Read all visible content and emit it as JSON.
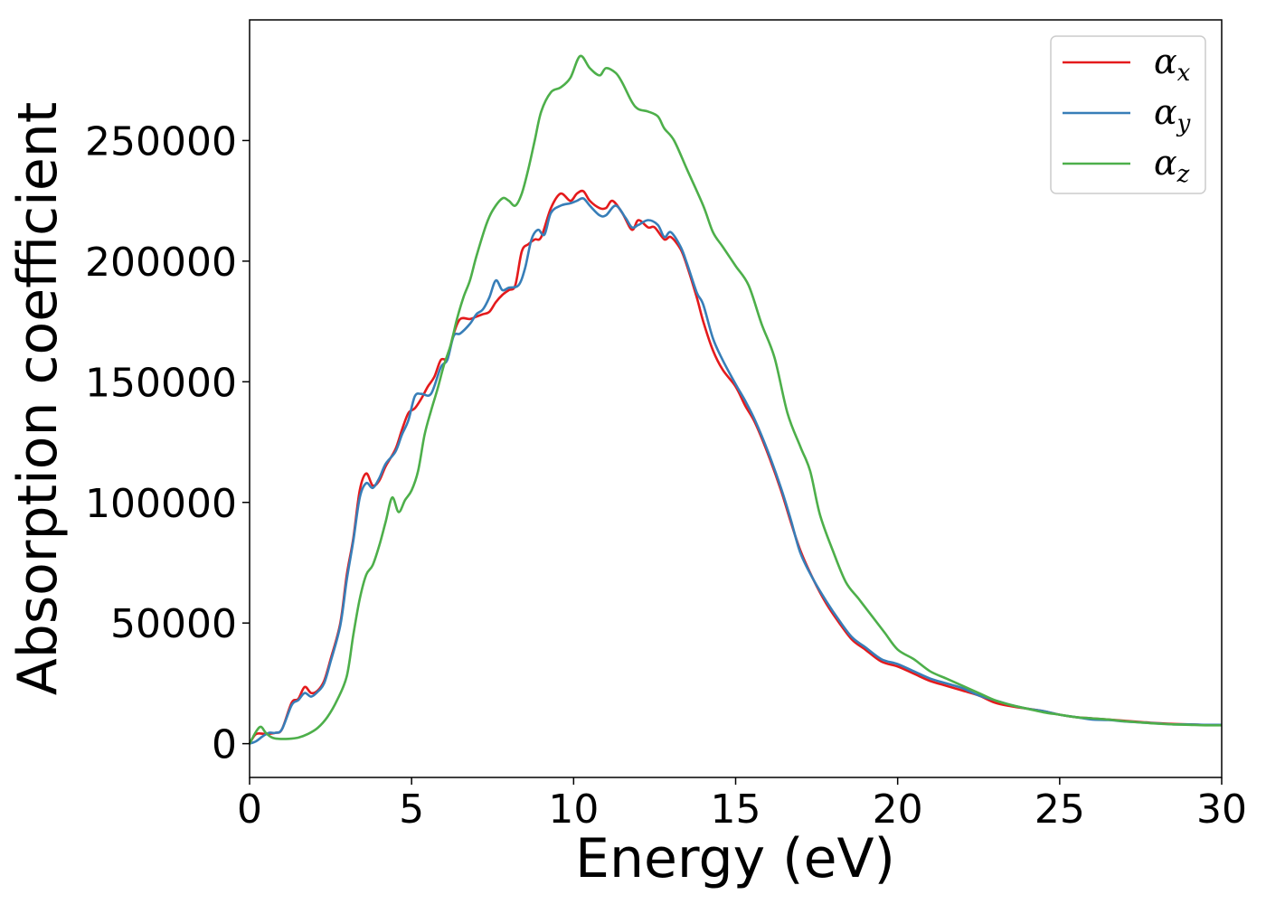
{
  "chart_data": {
    "type": "line",
    "title": "",
    "xlabel": "Energy (eV)",
    "ylabel": "Absorption coefficient",
    "xlim": [
      0,
      30
    ],
    "ylim": [
      -14000,
      300000
    ],
    "xticks": [
      0,
      5,
      10,
      15,
      20,
      25,
      30
    ],
    "yticks": [
      0,
      50000,
      100000,
      150000,
      200000,
      250000
    ],
    "x_tick_labels": [
      "0",
      "5",
      "10",
      "15",
      "20",
      "25",
      "30"
    ],
    "y_tick_labels": [
      "0",
      "50000",
      "100000",
      "150000",
      "200000",
      "250000"
    ],
    "grid": false,
    "legend_position": "top-right",
    "series": [
      {
        "name": "αx",
        "legend_symbol": "α",
        "legend_subscript": "x",
        "color": "#e41a1c",
        "points": [
          [
            0,
            0
          ],
          [
            0.2,
            4000
          ],
          [
            0.5,
            4000
          ],
          [
            0.8,
            4500
          ],
          [
            1.0,
            6000
          ],
          [
            1.3,
            17000
          ],
          [
            1.5,
            18500
          ],
          [
            1.7,
            23500
          ],
          [
            1.9,
            21000
          ],
          [
            2.1,
            22000
          ],
          [
            2.3,
            26000
          ],
          [
            2.5,
            35000
          ],
          [
            2.8,
            50000
          ],
          [
            3.0,
            70000
          ],
          [
            3.2,
            85000
          ],
          [
            3.4,
            105000
          ],
          [
            3.6,
            112000
          ],
          [
            3.8,
            107000
          ],
          [
            4.0,
            109000
          ],
          [
            4.2,
            115000
          ],
          [
            4.5,
            122000
          ],
          [
            4.7,
            130000
          ],
          [
            4.9,
            137000
          ],
          [
            5.1,
            139000
          ],
          [
            5.3,
            143000
          ],
          [
            5.5,
            148000
          ],
          [
            5.7,
            152000
          ],
          [
            5.9,
            159000
          ],
          [
            6.1,
            160000
          ],
          [
            6.3,
            170000
          ],
          [
            6.5,
            176000
          ],
          [
            6.8,
            176000
          ],
          [
            7.0,
            177000
          ],
          [
            7.2,
            178000
          ],
          [
            7.4,
            179000
          ],
          [
            7.6,
            183000
          ],
          [
            7.8,
            186000
          ],
          [
            8.0,
            188000
          ],
          [
            8.2,
            190000
          ],
          [
            8.4,
            204000
          ],
          [
            8.6,
            207000
          ],
          [
            8.8,
            209000
          ],
          [
            9.0,
            210000
          ],
          [
            9.3,
            222000
          ],
          [
            9.6,
            228000
          ],
          [
            9.9,
            225000
          ],
          [
            10.1,
            228000
          ],
          [
            10.3,
            229000
          ],
          [
            10.5,
            225000
          ],
          [
            10.8,
            222000
          ],
          [
            11.0,
            222000
          ],
          [
            11.2,
            225000
          ],
          [
            11.5,
            220000
          ],
          [
            11.8,
            213000
          ],
          [
            12.0,
            217000
          ],
          [
            12.3,
            214000
          ],
          [
            12.5,
            214000
          ],
          [
            12.8,
            209000
          ],
          [
            13.0,
            210000
          ],
          [
            13.3,
            205000
          ],
          [
            13.5,
            198000
          ],
          [
            13.8,
            185000
          ],
          [
            14.0,
            175000
          ],
          [
            14.3,
            163000
          ],
          [
            14.6,
            155000
          ],
          [
            15.0,
            148000
          ],
          [
            15.3,
            140000
          ],
          [
            15.6,
            133000
          ],
          [
            16.0,
            120000
          ],
          [
            16.4,
            105000
          ],
          [
            16.7,
            92000
          ],
          [
            17.0,
            80000
          ],
          [
            17.4,
            68000
          ],
          [
            17.8,
            58000
          ],
          [
            18.2,
            50000
          ],
          [
            18.6,
            43000
          ],
          [
            19.0,
            39000
          ],
          [
            19.5,
            34000
          ],
          [
            20.0,
            32000
          ],
          [
            20.5,
            29000
          ],
          [
            21.0,
            26000
          ],
          [
            21.5,
            24000
          ],
          [
            22.0,
            22000
          ],
          [
            22.5,
            20000
          ],
          [
            23.0,
            17000
          ],
          [
            23.5,
            15500
          ],
          [
            24.0,
            14500
          ],
          [
            24.5,
            13500
          ],
          [
            25.0,
            12000
          ],
          [
            25.5,
            11000
          ],
          [
            26.0,
            10500
          ],
          [
            26.5,
            10000
          ],
          [
            27.0,
            9500
          ],
          [
            27.5,
            9000
          ],
          [
            28.0,
            8500
          ],
          [
            28.5,
            8200
          ],
          [
            29.0,
            8000
          ],
          [
            29.5,
            7800
          ],
          [
            30.0,
            7800
          ]
        ]
      },
      {
        "name": "αy",
        "legend_symbol": "α",
        "legend_subscript": "y",
        "color": "#377eb8",
        "points": [
          [
            0,
            0
          ],
          [
            0.2,
            1000
          ],
          [
            0.4,
            3000
          ],
          [
            0.6,
            4500
          ],
          [
            0.8,
            4500
          ],
          [
            1.0,
            6000
          ],
          [
            1.3,
            16000
          ],
          [
            1.5,
            18000
          ],
          [
            1.7,
            21000
          ],
          [
            1.9,
            19500
          ],
          [
            2.1,
            21500
          ],
          [
            2.3,
            25000
          ],
          [
            2.5,
            34000
          ],
          [
            2.8,
            49000
          ],
          [
            3.0,
            68000
          ],
          [
            3.2,
            84000
          ],
          [
            3.4,
            102000
          ],
          [
            3.6,
            108000
          ],
          [
            3.8,
            106000
          ],
          [
            4.0,
            110000
          ],
          [
            4.2,
            116000
          ],
          [
            4.5,
            121000
          ],
          [
            4.7,
            128000
          ],
          [
            4.9,
            134000
          ],
          [
            5.1,
            144000
          ],
          [
            5.3,
            145000
          ],
          [
            5.6,
            145000
          ],
          [
            5.9,
            156000
          ],
          [
            6.1,
            159000
          ],
          [
            6.3,
            169000
          ],
          [
            6.5,
            170000
          ],
          [
            6.8,
            174000
          ],
          [
            7.0,
            178000
          ],
          [
            7.2,
            180000
          ],
          [
            7.4,
            185000
          ],
          [
            7.6,
            192000
          ],
          [
            7.8,
            188000
          ],
          [
            8.0,
            189000
          ],
          [
            8.3,
            190000
          ],
          [
            8.5,
            197000
          ],
          [
            8.7,
            209000
          ],
          [
            8.9,
            213000
          ],
          [
            9.1,
            211000
          ],
          [
            9.3,
            220000
          ],
          [
            9.6,
            223000
          ],
          [
            9.9,
            224000
          ],
          [
            10.1,
            225000
          ],
          [
            10.3,
            226000
          ],
          [
            10.5,
            223000
          ],
          [
            10.8,
            219000
          ],
          [
            11.0,
            219000
          ],
          [
            11.3,
            223000
          ],
          [
            11.6,
            218000
          ],
          [
            11.8,
            214000
          ],
          [
            12.0,
            215000
          ],
          [
            12.3,
            217000
          ],
          [
            12.6,
            215000
          ],
          [
            12.8,
            210000
          ],
          [
            13.0,
            212000
          ],
          [
            13.3,
            206000
          ],
          [
            13.5,
            199000
          ],
          [
            13.8,
            187000
          ],
          [
            14.0,
            182000
          ],
          [
            14.3,
            168000
          ],
          [
            14.6,
            159000
          ],
          [
            15.0,
            149000
          ],
          [
            15.3,
            142000
          ],
          [
            15.6,
            134000
          ],
          [
            16.0,
            121000
          ],
          [
            16.4,
            106000
          ],
          [
            16.7,
            93000
          ],
          [
            17.0,
            79000
          ],
          [
            17.4,
            68000
          ],
          [
            17.8,
            59000
          ],
          [
            18.2,
            51000
          ],
          [
            18.6,
            44000
          ],
          [
            19.0,
            40000
          ],
          [
            19.5,
            35000
          ],
          [
            20.0,
            33000
          ],
          [
            20.5,
            30000
          ],
          [
            21.0,
            27000
          ],
          [
            21.5,
            25000
          ],
          [
            22.0,
            23000
          ],
          [
            22.5,
            20000
          ],
          [
            23.0,
            18000
          ],
          [
            23.5,
            16000
          ],
          [
            24.0,
            14500
          ],
          [
            24.5,
            13500
          ],
          [
            25.0,
            12000
          ],
          [
            25.5,
            11000
          ],
          [
            26.0,
            10000
          ],
          [
            26.5,
            9800
          ],
          [
            27.0,
            9200
          ],
          [
            27.5,
            8800
          ],
          [
            28.0,
            8400
          ],
          [
            28.5,
            8000
          ],
          [
            29.0,
            8000
          ],
          [
            29.5,
            7800
          ],
          [
            30.0,
            7800
          ]
        ]
      },
      {
        "name": "αz",
        "legend_symbol": "α",
        "legend_subscript": "z",
        "color": "#4daf4a",
        "points": [
          [
            0,
            0
          ],
          [
            0.2,
            5000
          ],
          [
            0.35,
            7000
          ],
          [
            0.5,
            4500
          ],
          [
            0.7,
            2500
          ],
          [
            0.9,
            2000
          ],
          [
            1.2,
            2000
          ],
          [
            1.5,
            2500
          ],
          [
            1.8,
            4000
          ],
          [
            2.1,
            6500
          ],
          [
            2.4,
            11000
          ],
          [
            2.7,
            18000
          ],
          [
            3.0,
            28000
          ],
          [
            3.2,
            45000
          ],
          [
            3.4,
            60000
          ],
          [
            3.6,
            70000
          ],
          [
            3.8,
            74000
          ],
          [
            4.0,
            82000
          ],
          [
            4.2,
            92000
          ],
          [
            4.4,
            102000
          ],
          [
            4.6,
            96000
          ],
          [
            4.8,
            101000
          ],
          [
            5.0,
            105000
          ],
          [
            5.2,
            113000
          ],
          [
            5.4,
            128000
          ],
          [
            5.6,
            138000
          ],
          [
            5.8,
            147000
          ],
          [
            6.0,
            157000
          ],
          [
            6.2,
            165000
          ],
          [
            6.4,
            176000
          ],
          [
            6.6,
            185000
          ],
          [
            6.8,
            192000
          ],
          [
            7.0,
            202000
          ],
          [
            7.3,
            215000
          ],
          [
            7.5,
            221000
          ],
          [
            7.8,
            226000
          ],
          [
            8.0,
            225000
          ],
          [
            8.2,
            223000
          ],
          [
            8.4,
            228000
          ],
          [
            8.6,
            238000
          ],
          [
            8.8,
            250000
          ],
          [
            9.0,
            262000
          ],
          [
            9.3,
            270000
          ],
          [
            9.6,
            272000
          ],
          [
            9.9,
            276000
          ],
          [
            10.2,
            285000
          ],
          [
            10.5,
            280000
          ],
          [
            10.8,
            277000
          ],
          [
            11.0,
            280000
          ],
          [
            11.3,
            278000
          ],
          [
            11.5,
            274000
          ],
          [
            11.8,
            266000
          ],
          [
            12.0,
            263000
          ],
          [
            12.3,
            262000
          ],
          [
            12.6,
            260000
          ],
          [
            12.8,
            255000
          ],
          [
            13.1,
            250000
          ],
          [
            13.5,
            238000
          ],
          [
            14.0,
            223000
          ],
          [
            14.3,
            212000
          ],
          [
            14.6,
            206000
          ],
          [
            15.0,
            198000
          ],
          [
            15.4,
            190000
          ],
          [
            15.8,
            174000
          ],
          [
            16.2,
            160000
          ],
          [
            16.6,
            137000
          ],
          [
            17.0,
            123000
          ],
          [
            17.3,
            113000
          ],
          [
            17.6,
            95000
          ],
          [
            18.0,
            80000
          ],
          [
            18.4,
            67000
          ],
          [
            18.8,
            60000
          ],
          [
            19.2,
            53000
          ],
          [
            19.6,
            46000
          ],
          [
            20.0,
            39000
          ],
          [
            20.5,
            35000
          ],
          [
            21.0,
            30000
          ],
          [
            21.5,
            27000
          ],
          [
            22.0,
            24000
          ],
          [
            22.5,
            21000
          ],
          [
            23.0,
            18000
          ],
          [
            23.5,
            16000
          ],
          [
            24.0,
            14500
          ],
          [
            24.5,
            13000
          ],
          [
            25.0,
            12000
          ],
          [
            25.5,
            11000
          ],
          [
            26.0,
            10500
          ],
          [
            26.5,
            10000
          ],
          [
            27.0,
            9300
          ],
          [
            27.5,
            8800
          ],
          [
            28.0,
            8300
          ],
          [
            28.5,
            8000
          ],
          [
            29.0,
            7800
          ],
          [
            29.5,
            7600
          ],
          [
            30.0,
            7600
          ]
        ]
      }
    ]
  }
}
